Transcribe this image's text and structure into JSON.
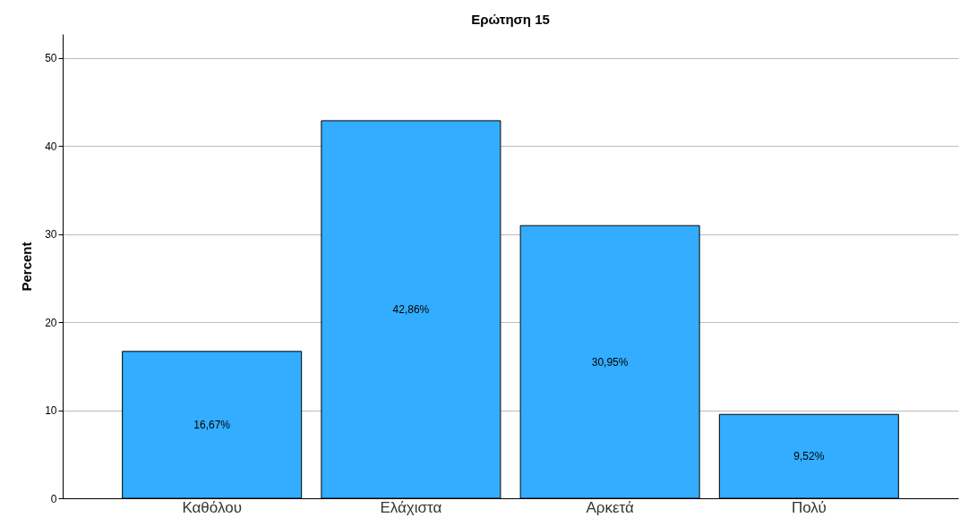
{
  "chart_data": {
    "type": "bar",
    "title": "Ερώτηση 15",
    "ylabel": "Percent",
    "categories": [
      "Καθόλου",
      "Ελάχιστα",
      "Αρκετά",
      "Πολύ"
    ],
    "values": [
      16.67,
      42.86,
      30.95,
      9.52
    ],
    "value_labels": [
      "16,67%",
      "42,86%",
      "30,95%",
      "9,52%"
    ],
    "color": "#33adff",
    "ylim": [
      0,
      52.7
    ],
    "yticks": [
      0,
      10,
      20,
      30,
      40,
      50
    ],
    "grid": "y"
  }
}
